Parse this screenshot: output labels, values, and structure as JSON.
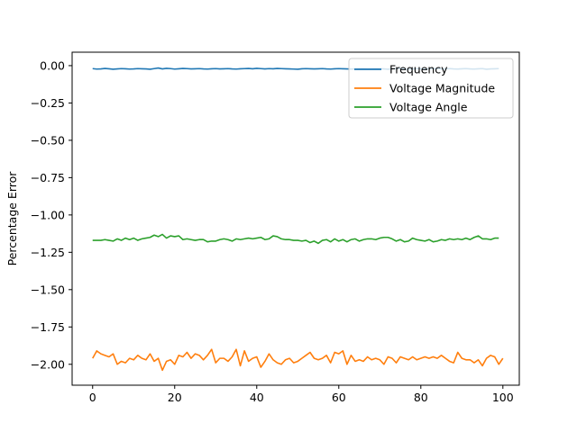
{
  "chart_data": {
    "type": "line",
    "title": "",
    "xlabel": "",
    "ylabel": "Percentage Error",
    "xlim": [
      -5,
      104
    ],
    "ylim": [
      -2.14,
      0.09
    ],
    "x_ticks": [
      0,
      20,
      40,
      60,
      80,
      100
    ],
    "x_tick_labels": [
      "0",
      "20",
      "40",
      "60",
      "80",
      "100"
    ],
    "y_ticks": [
      0.0,
      -0.25,
      -0.5,
      -0.75,
      -1.0,
      -1.25,
      -1.5,
      -1.75,
      -2.0
    ],
    "y_tick_labels": [
      "0.00",
      "−0.25",
      "−0.50",
      "−0.75",
      "−1.00",
      "−1.25",
      "−1.50",
      "−1.75",
      "−2.00"
    ],
    "grid": false,
    "legend": {
      "position": "top-right"
    },
    "x_start": 0,
    "x_step": 1,
    "series": [
      {
        "name": "Frequency",
        "color": "#1f77b4",
        "values": [
          -0.02,
          -0.023,
          -0.022,
          -0.019,
          -0.021,
          -0.024,
          -0.022,
          -0.02,
          -0.021,
          -0.023,
          -0.022,
          -0.02,
          -0.021,
          -0.022,
          -0.024,
          -0.02,
          -0.016,
          -0.022,
          -0.018,
          -0.02,
          -0.023,
          -0.021,
          -0.019,
          -0.02,
          -0.022,
          -0.021,
          -0.02,
          -0.022,
          -0.023,
          -0.021,
          -0.02,
          -0.022,
          -0.021,
          -0.02,
          -0.022,
          -0.023,
          -0.021,
          -0.02,
          -0.019,
          -0.021,
          -0.018,
          -0.02,
          -0.022,
          -0.02,
          -0.021,
          -0.019,
          -0.02,
          -0.021,
          -0.022,
          -0.023,
          -0.024,
          -0.021,
          -0.02,
          -0.021,
          -0.022,
          -0.021,
          -0.02,
          -0.022,
          -0.023,
          -0.021,
          -0.02,
          -0.021,
          -0.022,
          -0.023,
          -0.022,
          -0.021,
          -0.02,
          -0.022,
          -0.021,
          -0.02,
          -0.021,
          -0.022,
          -0.024,
          -0.021,
          -0.02,
          -0.019,
          -0.022,
          -0.024,
          -0.022,
          -0.02,
          -0.021,
          -0.023,
          -0.021,
          -0.02,
          -0.019,
          -0.022,
          -0.021,
          -0.02,
          -0.022,
          -0.023,
          -0.021,
          -0.02,
          -0.022,
          -0.023,
          -0.021,
          -0.02,
          -0.024,
          -0.022,
          -0.021,
          -0.02
        ]
      },
      {
        "name": "Voltage Magnitude",
        "color": "#ff7f0e",
        "values": [
          -1.96,
          -1.91,
          -1.93,
          -1.94,
          -1.95,
          -1.93,
          -2.0,
          -1.98,
          -1.99,
          -1.96,
          -1.97,
          -1.94,
          -1.96,
          -1.97,
          -1.93,
          -1.98,
          -1.96,
          -2.04,
          -1.98,
          -1.97,
          -2.0,
          -1.94,
          -1.95,
          -1.92,
          -1.96,
          -1.93,
          -1.94,
          -1.97,
          -1.94,
          -1.9,
          -1.99,
          -1.96,
          -1.96,
          -1.98,
          -1.95,
          -1.9,
          -2.01,
          -1.91,
          -1.98,
          -1.96,
          -1.95,
          -2.02,
          -1.98,
          -1.93,
          -1.97,
          -1.99,
          -2.0,
          -1.97,
          -1.96,
          -1.99,
          -1.98,
          -1.96,
          -1.94,
          -1.92,
          -1.96,
          -1.97,
          -1.96,
          -1.94,
          -1.99,
          -1.92,
          -1.93,
          -1.91,
          -2.0,
          -1.94,
          -1.98,
          -1.97,
          -1.98,
          -1.95,
          -1.97,
          -1.96,
          -1.97,
          -2.0,
          -1.95,
          -1.96,
          -1.99,
          -1.95,
          -1.96,
          -1.97,
          -1.95,
          -1.97,
          -1.96,
          -1.95,
          -1.96,
          -1.95,
          -1.96,
          -1.94,
          -1.96,
          -1.98,
          -1.99,
          -1.92,
          -1.96,
          -1.97,
          -1.97,
          -1.99,
          -1.97,
          -2.01,
          -1.96,
          -1.94,
          -1.95,
          -2.0,
          -1.96
        ]
      },
      {
        "name": "Voltage Angle",
        "color": "#2ca02c",
        "values": [
          -1.17,
          -1.17,
          -1.17,
          -1.165,
          -1.17,
          -1.175,
          -1.16,
          -1.17,
          -1.155,
          -1.165,
          -1.155,
          -1.17,
          -1.16,
          -1.155,
          -1.15,
          -1.135,
          -1.145,
          -1.13,
          -1.155,
          -1.14,
          -1.145,
          -1.14,
          -1.165,
          -1.16,
          -1.165,
          -1.17,
          -1.165,
          -1.165,
          -1.18,
          -1.175,
          -1.175,
          -1.165,
          -1.16,
          -1.165,
          -1.175,
          -1.16,
          -1.165,
          -1.16,
          -1.155,
          -1.16,
          -1.155,
          -1.15,
          -1.165,
          -1.16,
          -1.14,
          -1.145,
          -1.16,
          -1.165,
          -1.165,
          -1.17,
          -1.17,
          -1.175,
          -1.17,
          -1.185,
          -1.175,
          -1.19,
          -1.17,
          -1.165,
          -1.18,
          -1.16,
          -1.175,
          -1.165,
          -1.18,
          -1.165,
          -1.16,
          -1.175,
          -1.165,
          -1.16,
          -1.16,
          -1.165,
          -1.155,
          -1.15,
          -1.15,
          -1.16,
          -1.175,
          -1.165,
          -1.18,
          -1.175,
          -1.155,
          -1.165,
          -1.17,
          -1.175,
          -1.165,
          -1.18,
          -1.175,
          -1.165,
          -1.17,
          -1.16,
          -1.165,
          -1.16,
          -1.165,
          -1.155,
          -1.165,
          -1.15,
          -1.14,
          -1.16,
          -1.16,
          -1.165,
          -1.155,
          -1.155
        ]
      }
    ]
  }
}
